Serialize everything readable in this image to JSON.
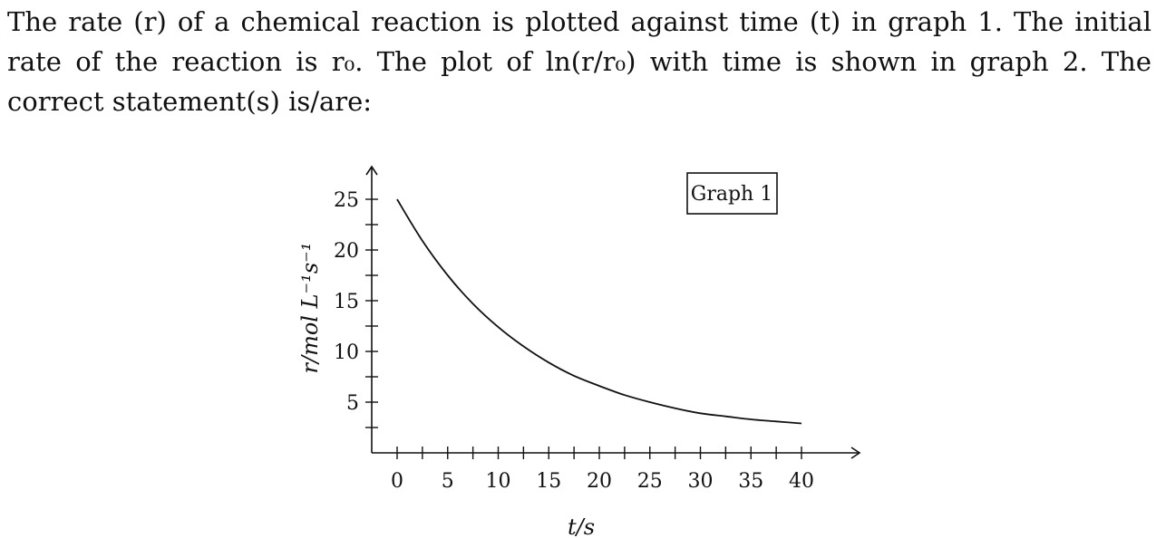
{
  "question": {
    "lines": [
      "The rate (r) of a chemical reaction is plotted against time (t) in graph 1. The initial",
      "rate of the reaction is r₀. The plot of ln(r/r₀) with time is shown in graph 2. The",
      "correct statement(s) is/are:"
    ]
  },
  "chart_data": {
    "type": "line",
    "title": "Graph 1",
    "xlabel": "t/s",
    "ylabel": "r/mol L⁻¹s⁻¹",
    "xlim": [
      0,
      40
    ],
    "ylim": [
      0,
      25
    ],
    "x_ticks": [
      0,
      5,
      10,
      15,
      20,
      25,
      30,
      35,
      40
    ],
    "y_ticks": [
      5,
      10,
      15,
      20,
      25
    ],
    "series": [
      {
        "x": [
          0,
          2.5,
          5,
          7.5,
          10,
          12.5,
          15,
          17.5,
          20,
          22.5,
          25,
          27.5,
          30,
          32.5,
          35,
          37.5,
          40
        ],
        "values": [
          25.0,
          20.9,
          17.5,
          14.7,
          12.4,
          10.5,
          8.9,
          7.6,
          6.6,
          5.7,
          5.0,
          4.4,
          3.9,
          3.6,
          3.3,
          3.1,
          2.9
        ]
      }
    ],
    "grid": false,
    "legend_position": "top-right"
  }
}
